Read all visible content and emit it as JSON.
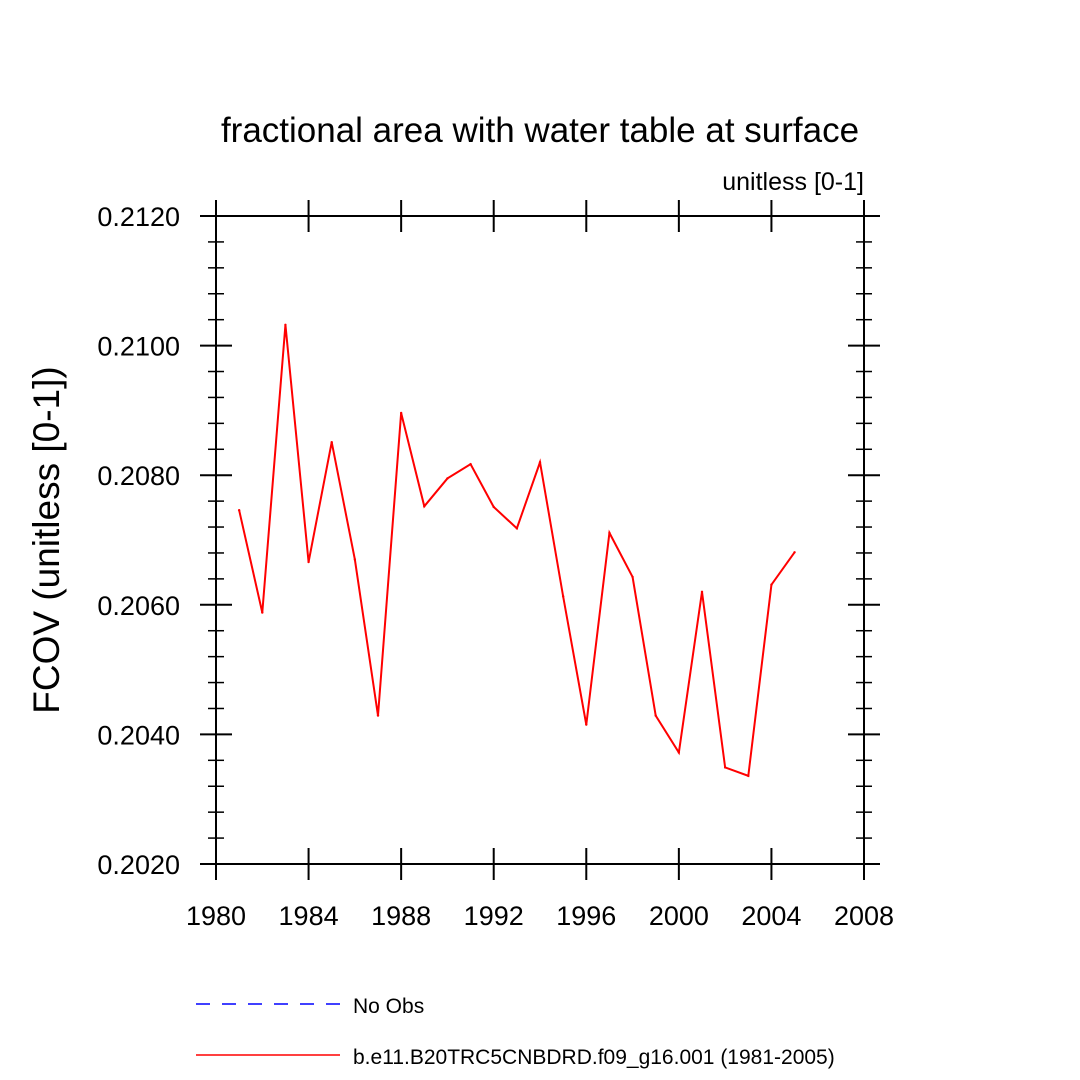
{
  "chart_data": {
    "type": "line",
    "title": "fractional area with water table at surface",
    "subtitle": "unitless [0-1]",
    "xlabel": "",
    "ylabel": "FCOV  (unitless [0-1])",
    "xlim": [
      1980,
      2008
    ],
    "ylim": [
      0.202,
      0.212
    ],
    "x_ticks": [
      1980,
      1984,
      1988,
      1992,
      1996,
      2000,
      2004,
      2008
    ],
    "x_tick_labels": [
      "1980",
      "1984",
      "1988",
      "1992",
      "1996",
      "2000",
      "2004",
      "2008"
    ],
    "y_ticks": [
      0.202,
      0.204,
      0.206,
      0.208,
      0.21,
      0.212
    ],
    "y_tick_labels": [
      "0.2020",
      "0.2040",
      "0.2060",
      "0.2080",
      "0.2100",
      "0.2120"
    ],
    "grid": false,
    "legend_position": "bottom",
    "series": [
      {
        "name": "No Obs",
        "color": "#0000ff",
        "style": "dashed",
        "x": [],
        "values": []
      },
      {
        "name": "b.e11.B20TRC5CNBDRD.f09_g16.001 (1981-2005)",
        "color": "#ff0000",
        "style": "solid",
        "x": [
          1981,
          1982,
          1983,
          1984,
          1985,
          1986,
          1987,
          1988,
          1989,
          1990,
          1991,
          1992,
          1993,
          1994,
          1995,
          1996,
          1997,
          1998,
          1999,
          2000,
          2001,
          2002,
          2003,
          2004,
          2005
        ],
        "values": [
          0.20746,
          0.20588,
          0.21032,
          0.20666,
          0.20851,
          0.2067,
          0.20429,
          0.20896,
          0.20752,
          0.20795,
          0.20817,
          0.20751,
          0.20718,
          0.2082,
          0.20613,
          0.20415,
          0.20711,
          0.20643,
          0.20429,
          0.20372,
          0.2062,
          0.20349,
          0.20336,
          0.20631,
          0.20681
        ]
      }
    ]
  }
}
